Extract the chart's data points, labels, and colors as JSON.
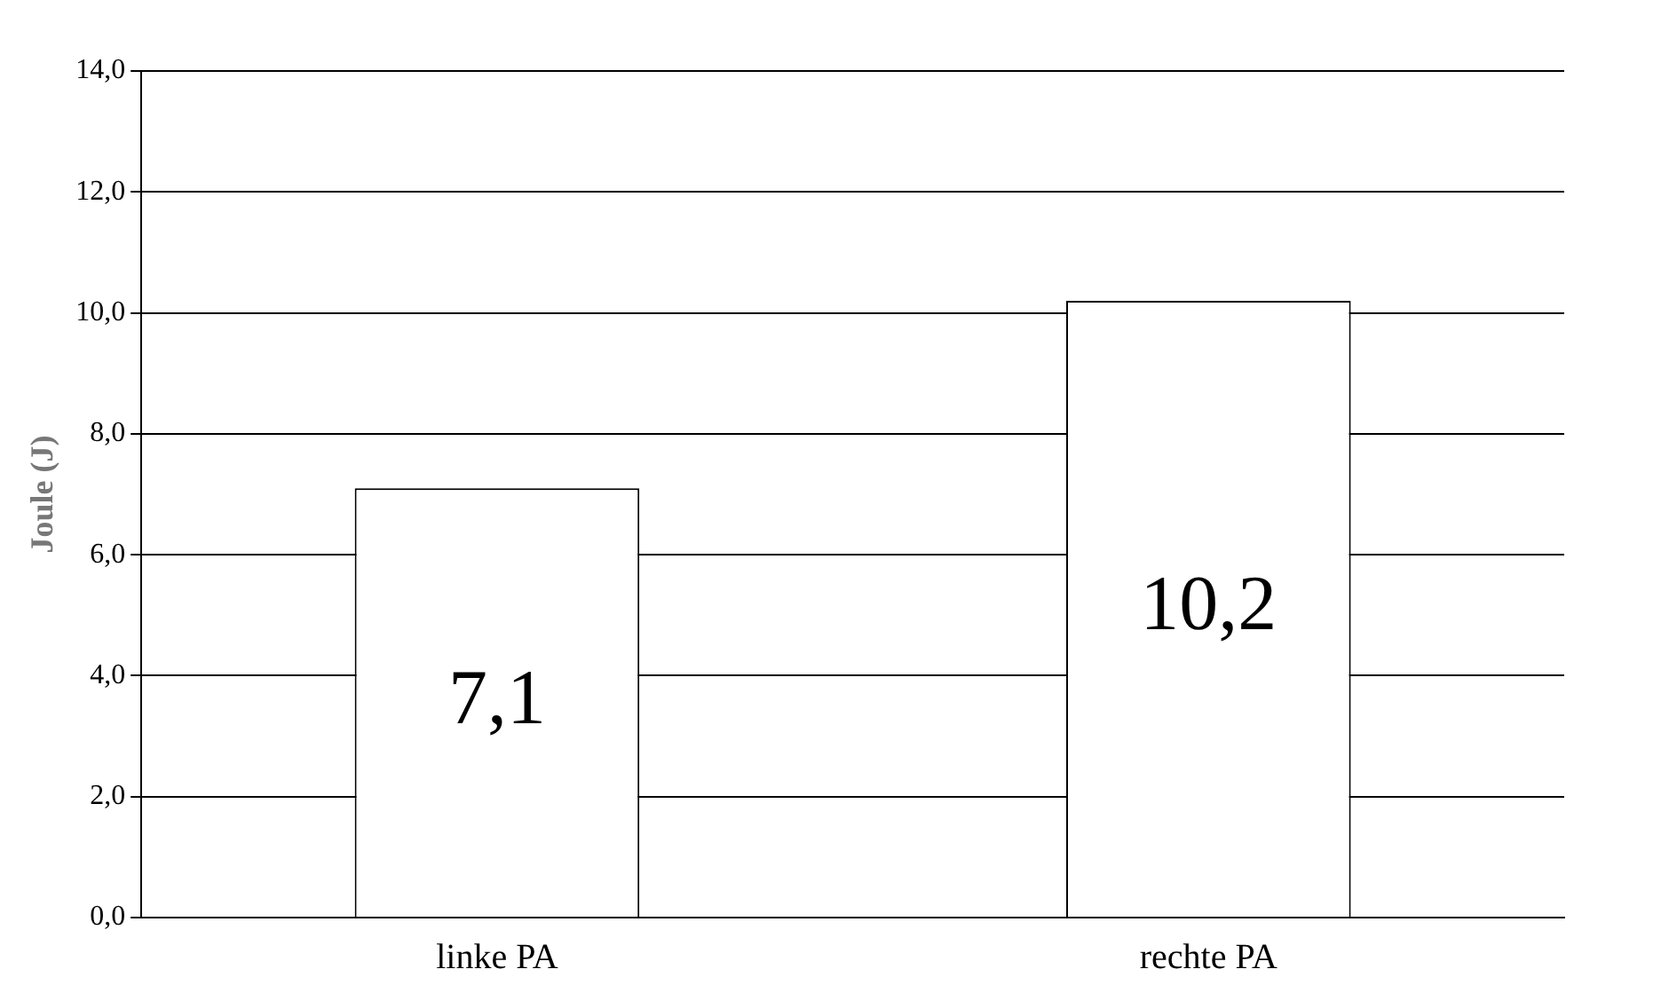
{
  "chart_data": {
    "type": "bar",
    "ylabel": "Joule (J)",
    "categories": [
      "linke PA",
      "rechte PA"
    ],
    "values": [
      7.1,
      10.2
    ],
    "value_labels": [
      "7,1",
      "10,2"
    ],
    "color": "#ffffff",
    "ylim": [
      0,
      14
    ],
    "yticks": [
      {
        "value": 0,
        "label": "0,0"
      },
      {
        "value": 2,
        "label": "2,0"
      },
      {
        "value": 4,
        "label": "4,0"
      },
      {
        "value": 6,
        "label": "6,0"
      },
      {
        "value": 8,
        "label": "8,0"
      },
      {
        "value": 10,
        "label": "10,0"
      },
      {
        "value": 12,
        "label": "12,0"
      },
      {
        "value": 14,
        "label": "14,0"
      }
    ],
    "grid": "y",
    "legend": false
  }
}
